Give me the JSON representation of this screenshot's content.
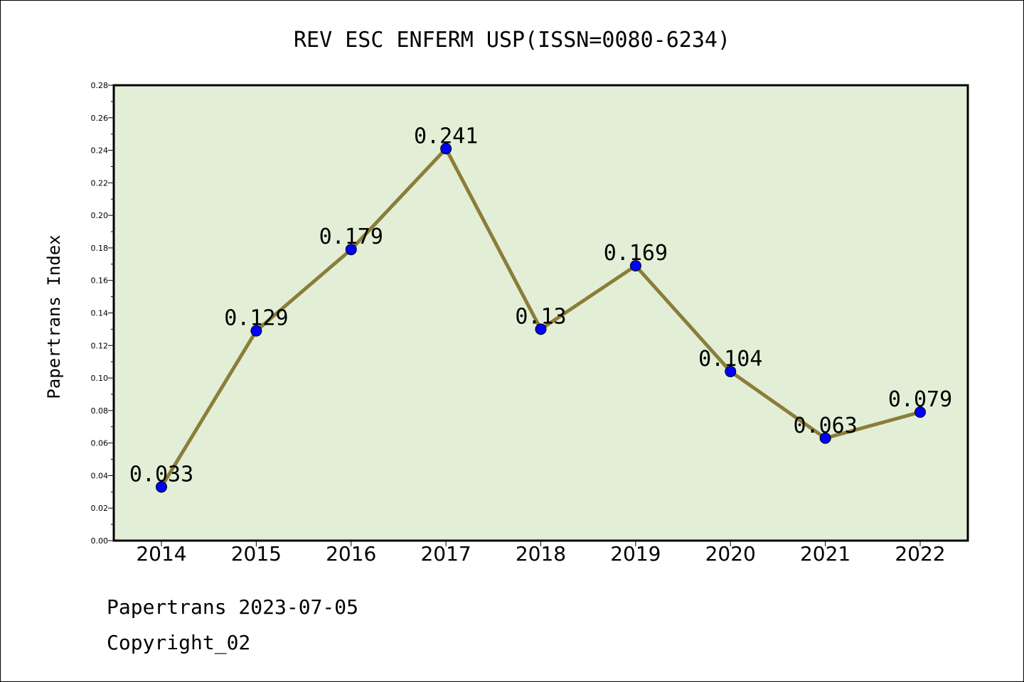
{
  "chart_data": {
    "type": "line",
    "title": "REV ESC ENFERM USP(ISSN=0080-6234)",
    "xlabel": "",
    "ylabel": "Papertrans Index",
    "categories": [
      "2014",
      "2015",
      "2016",
      "2017",
      "2018",
      "2019",
      "2020",
      "2021",
      "2022"
    ],
    "series": [
      {
        "values": [
          0.033,
          0.129,
          0.179,
          0.241,
          0.13,
          0.169,
          0.104,
          0.063,
          0.079
        ]
      }
    ],
    "data_labels": [
      "0.033",
      "0.129",
      "0.179",
      "0.241",
      "0.13",
      "0.169",
      "0.104",
      "0.063",
      "0.079"
    ],
    "ylim": [
      0,
      0.28
    ],
    "yticks": [
      "0.00",
      "0.02",
      "0.04",
      "0.06",
      "0.08",
      "0.10",
      "0.12",
      "0.14",
      "0.16",
      "0.18",
      "0.20",
      "0.22",
      "0.24",
      "0.26",
      "0.28"
    ],
    "grid": false,
    "colors": {
      "plot_background": "#e2efd6",
      "line": "#8b7d3a",
      "marker": "#0000ff"
    }
  },
  "footer": {
    "line1": "Papertrans 2023-07-05",
    "line2": "Copyright_02"
  }
}
